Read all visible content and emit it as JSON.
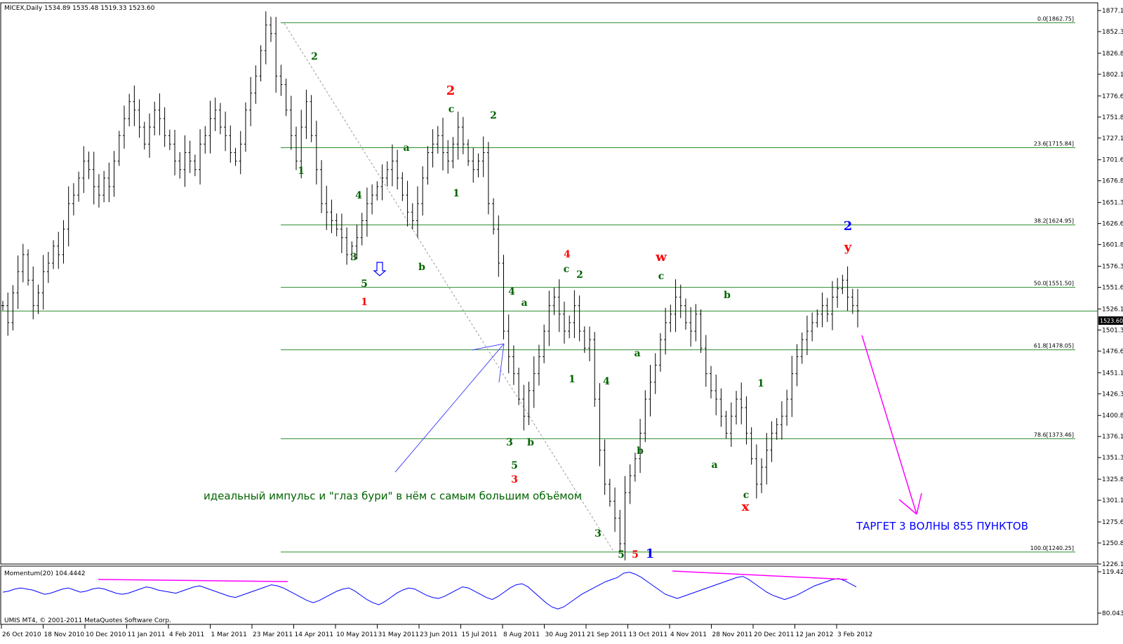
{
  "chart_title": "MICEX,Daily  1534.89 1535.48 1519.33 1523.60",
  "last_price_label": "1523.60",
  "copyright": "UMIS MT4, © 2001-2011 MetaQuotes Software Corp.",
  "momentum_label": "Momentum(20) 104.4442",
  "annotation_text": "идеальный импульс и \"глаз бури\" в нём с самым большим объёмом",
  "target_text": "ТАРГЕТ 3 ВОЛНЫ 855 ПУНКТОВ",
  "colors": {
    "green": "#006400",
    "red": "#ff0000",
    "blue": "#0000ff",
    "magenta": "#ff00ff",
    "fib": "#2e8b2e",
    "bars": "#000000",
    "momentum": "#0000ff"
  },
  "chart_data": {
    "type": "ohlc",
    "y_ticks": [
      "1877.10",
      "1852.35",
      "1826.85",
      "1802.10",
      "1776.60",
      "1751.85",
      "1727.10",
      "1701.60",
      "1676.85",
      "1651.35",
      "1626.60",
      "1601.85",
      "1576.35",
      "1551.60",
      "1526.10",
      "1501.35",
      "1476.60",
      "1451.10",
      "1426.35",
      "1400.85",
      "1376.10",
      "1351.35",
      "1325.85",
      "1301.10",
      "1275.60",
      "1250.85",
      "1226.10"
    ],
    "ylim": [
      1220,
      1885
    ],
    "x_ticks": [
      "26 Oct 2010",
      "18 Nov 2010",
      "10 Dec 2010",
      "11 Jan 2011",
      "4 Feb 2011",
      "1 Mar 2011",
      "23 Mar 2011",
      "14 Apr 2011",
      "10 May 2011",
      "31 May 2011",
      "23 Jun 2011",
      "15 Jul 2011",
      "8 Aug 2011",
      "30 Aug 2011",
      "21 Sep 2011",
      "13 Oct 2011",
      "4 Nov 2011",
      "28 Nov 2011",
      "20 Dec 2011",
      "12 Jan 2012",
      "3 Feb 2012"
    ],
    "close_path": [
      1530,
      1510,
      1545,
      1570,
      1590,
      1560,
      1530,
      1545,
      1570,
      1580,
      1600,
      1590,
      1620,
      1650,
      1660,
      1680,
      1700,
      1690,
      1670,
      1660,
      1680,
      1670,
      1700,
      1730,
      1750,
      1770,
      1760,
      1740,
      1720,
      1740,
      1760,
      1750,
      1730,
      1720,
      1700,
      1690,
      1710,
      1700,
      1690,
      1720,
      1730,
      1750,
      1760,
      1740,
      1730,
      1710,
      1700,
      1720,
      1760,
      1780,
      1800,
      1830,
      1860,
      1850,
      1800,
      1790,
      1760,
      1730,
      1700,
      1740,
      1770,
      1730,
      1690,
      1650,
      1640,
      1630,
      1620,
      1610,
      1590,
      1600,
      1610,
      1630,
      1650,
      1660,
      1670,
      1680,
      1690,
      1700,
      1680,
      1660,
      1640,
      1630,
      1650,
      1680,
      1710,
      1720,
      1730,
      1710,
      1700,
      1720,
      1740,
      1720,
      1700,
      1690,
      1700,
      1710,
      1650,
      1620,
      1580,
      1500,
      1470,
      1450,
      1420,
      1400,
      1430,
      1450,
      1470,
      1500,
      1530,
      1540,
      1520,
      1500,
      1510,
      1530,
      1500,
      1480,
      1490,
      1420,
      1360,
      1320,
      1300,
      1280,
      1250,
      1310,
      1330,
      1350,
      1380,
      1420,
      1440,
      1460,
      1490,
      1510,
      1520,
      1540,
      1530,
      1510,
      1500,
      1520,
      1480,
      1450,
      1430,
      1420,
      1400,
      1380,
      1400,
      1420,
      1410,
      1380,
      1350,
      1320,
      1340,
      1360,
      1380,
      1390,
      1400,
      1420,
      1450,
      1470,
      1490,
      1500,
      1510,
      1520,
      1530,
      1520,
      1540,
      1550,
      1560,
      1540,
      1530,
      1524
    ],
    "fib_levels": [
      {
        "label": "0.0[1862.75]",
        "price": 1862.75
      },
      {
        "label": "23.6[1715.84]",
        "price": 1715.84
      },
      {
        "label": "38.2[1624.95]",
        "price": 1624.95
      },
      {
        "label": "50.0[1551.50]",
        "price": 1551.5
      },
      {
        "label": "61.8[1478.05]",
        "price": 1478.05
      },
      {
        "label": "78.6[1373.46]",
        "price": 1373.46
      },
      {
        "label": "100.0[1240.25]",
        "price": 1240.25
      }
    ],
    "momentum": {
      "label": "Momentum(20) 104.4442",
      "y_ticks": [
        "119.423",
        "80.0431"
      ],
      "ylim": [
        78,
        122
      ],
      "values": [
        100,
        101,
        103,
        104,
        103,
        102,
        100,
        98,
        99,
        101,
        103,
        104,
        102,
        100,
        101,
        103,
        104,
        103,
        101,
        99,
        98,
        99,
        101,
        103,
        105,
        104,
        102,
        101,
        100,
        99,
        101,
        103,
        105,
        106,
        104,
        102,
        100,
        98,
        96,
        95,
        97,
        99,
        101,
        103,
        105,
        107,
        106,
        104,
        101,
        98,
        95,
        92,
        90,
        92,
        95,
        98,
        101,
        103,
        104,
        101,
        97,
        93,
        90,
        88,
        91,
        95,
        99,
        102,
        104,
        103,
        100,
        97,
        95,
        94,
        96,
        99,
        102,
        105,
        104,
        101,
        98,
        95,
        93,
        96,
        100,
        104,
        107,
        108,
        105,
        100,
        95,
        90,
        86,
        84,
        86,
        90,
        94,
        98,
        101,
        104,
        107,
        110,
        112,
        114,
        118,
        119,
        117,
        114,
        110,
        106,
        102,
        98,
        96,
        94,
        96,
        98,
        100,
        102,
        104,
        106,
        108,
        110,
        112,
        114,
        115,
        112,
        108,
        104,
        100,
        97,
        95,
        93,
        95,
        97,
        100,
        103,
        106,
        108,
        110,
        112,
        113,
        111,
        108,
        105
      ]
    },
    "wave_labels": [
      {
        "text": "2",
        "date": "Apr 2011",
        "price": 1802,
        "color": "green"
      },
      {
        "text": "1",
        "date": "Apr 2011",
        "price": 1703,
        "color": "green"
      },
      {
        "text": "4",
        "date": "May 2011",
        "price": 1658,
        "color": "green"
      },
      {
        "text": "3",
        "date": "May 2011",
        "price": 1590,
        "color": "green"
      },
      {
        "text": "5",
        "date": "May 2011",
        "price": 1553,
        "color": "green"
      },
      {
        "text": "1",
        "date": "May 2011",
        "price": 1525,
        "color": "red"
      },
      {
        "text": "a",
        "date": "Jun 2011",
        "price": 1728,
        "color": "green"
      },
      {
        "text": "b",
        "date": "Jun 2011",
        "price": 1580,
        "color": "green"
      },
      {
        "text": "2",
        "date": "Jul 2011",
        "price": 1785,
        "color": "red"
      },
      {
        "text": "c",
        "date": "Jul 2011",
        "price": 1760,
        "color": "green"
      },
      {
        "text": "1",
        "date": "Jul 2011",
        "price": 1663,
        "color": "green"
      },
      {
        "text": "2",
        "date": "Jul 2011",
        "price": 1753,
        "color": "green"
      },
      {
        "text": "4",
        "date": "Aug 2011",
        "price": 1538,
        "color": "green"
      },
      {
        "text": "a",
        "date": "Aug 2011",
        "price": 1525,
        "color": "green"
      },
      {
        "text": "3",
        "date": "Aug 2011",
        "price": 1363,
        "color": "green"
      },
      {
        "text": "b",
        "date": "Aug 2011",
        "price": 1363,
        "color": "green"
      },
      {
        "text": "5",
        "date": "Aug 2011",
        "price": 1340,
        "color": "green"
      },
      {
        "text": "3",
        "date": "Aug 2011",
        "price": 1320,
        "color": "red"
      },
      {
        "text": "4",
        "date": "Sep 2011",
        "price": 1598,
        "color": "red"
      },
      {
        "text": "c",
        "date": "Sep 2011",
        "price": 1577,
        "color": "green"
      },
      {
        "text": "2",
        "date": "Sep 2011",
        "price": 1569,
        "color": "green"
      },
      {
        "text": "1",
        "date": "Sep 2011",
        "price": 1436,
        "color": "green"
      },
      {
        "text": "4",
        "date": "Sep 2011",
        "price": 1434,
        "color": "green"
      },
      {
        "text": "3",
        "date": "Sep 2011",
        "price": 1264,
        "color": "green"
      },
      {
        "text": "5",
        "date": "Sep 2011",
        "price": 1232,
        "color": "green"
      },
      {
        "text": "5",
        "date": "Oct 2011",
        "price": 1232,
        "color": "red"
      },
      {
        "text": "1",
        "date": "Oct 2011",
        "price": 1232,
        "color": "blue"
      },
      {
        "text": "a",
        "date": "Oct 2011",
        "price": 1470,
        "color": "green"
      },
      {
        "text": "b",
        "date": "Oct 2011",
        "price": 1353,
        "color": "green"
      },
      {
        "text": "w",
        "date": "Oct 2011",
        "price": 1592,
        "color": "red"
      },
      {
        "text": "c",
        "date": "Oct 2011",
        "price": 1565,
        "color": "green"
      },
      {
        "text": "b",
        "date": "Nov 2011",
        "price": 1533,
        "color": "green"
      },
      {
        "text": "a",
        "date": "Nov 2011",
        "price": 1328,
        "color": "green"
      },
      {
        "text": "1",
        "date": "Dec 2011",
        "price": 1434,
        "color": "green"
      },
      {
        "text": "c",
        "date": "Dec 2011",
        "price": 1302,
        "color": "green"
      },
      {
        "text": "x",
        "date": "Dec 2011",
        "price": 1288,
        "color": "red"
      },
      {
        "text": "2",
        "date": "Feb 2012",
        "price": 1622,
        "color": "blue"
      },
      {
        "text": "y",
        "date": "Feb 2012",
        "price": 1604,
        "color": "red"
      }
    ]
  }
}
